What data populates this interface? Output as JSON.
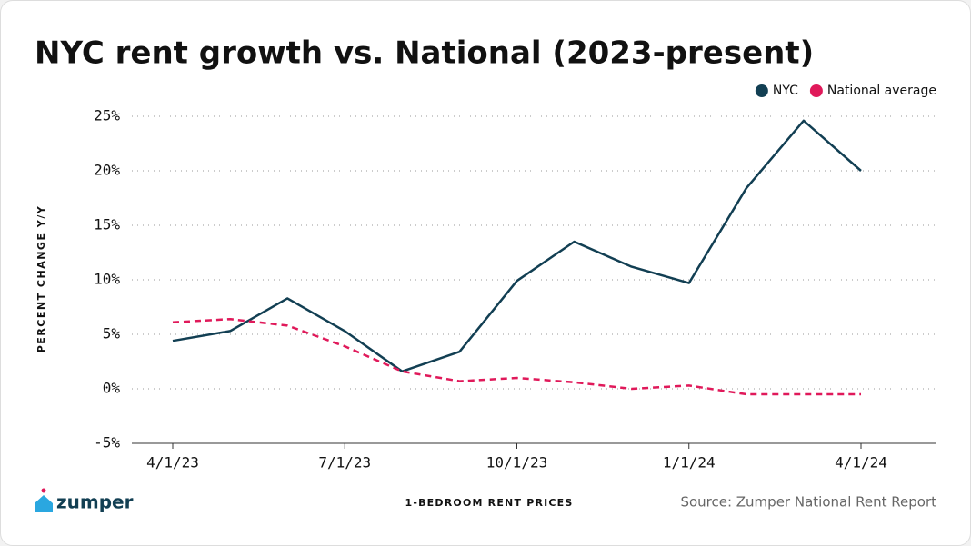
{
  "chart_data": {
    "type": "line",
    "title": "NYC rent growth vs. National (2023-present)",
    "ylabel": "PERCENT CHANGE Y/Y",
    "xlabel": "1-BEDROOM RENT PRICES",
    "source": "Source: Zumper National Rent Report",
    "logo": "zumper",
    "categories": [
      "4/1/23",
      null,
      null,
      "7/1/23",
      null,
      null,
      "10/1/23",
      null,
      null,
      "1/1/24",
      null,
      null,
      "4/1/24"
    ],
    "series": [
      {
        "name": "NYC",
        "color": "#123f53",
        "linestyle": "solid",
        "values": [
          4.4,
          5.3,
          8.3,
          5.3,
          1.6,
          3.4,
          9.9,
          13.5,
          11.2,
          9.7,
          18.4,
          24.6,
          20.0
        ]
      },
      {
        "name": "National average",
        "color": "#e0195a",
        "linestyle": "dashed",
        "values": [
          6.1,
          6.4,
          5.8,
          3.9,
          1.6,
          0.7,
          1.0,
          0.6,
          0.0,
          0.3,
          -0.5,
          -0.5,
          -0.5
        ]
      }
    ],
    "ylim": [
      -5,
      25
    ],
    "yticks": [
      {
        "value": -5,
        "label": "-5%"
      },
      {
        "value": 0,
        "label": "0%"
      },
      {
        "value": 5,
        "label": "5%"
      },
      {
        "value": 10,
        "label": "10%"
      },
      {
        "value": 15,
        "label": "15%"
      },
      {
        "value": 20,
        "label": "20%"
      },
      {
        "value": 25,
        "label": "25%"
      }
    ],
    "grid": true,
    "legend": "top-right"
  }
}
